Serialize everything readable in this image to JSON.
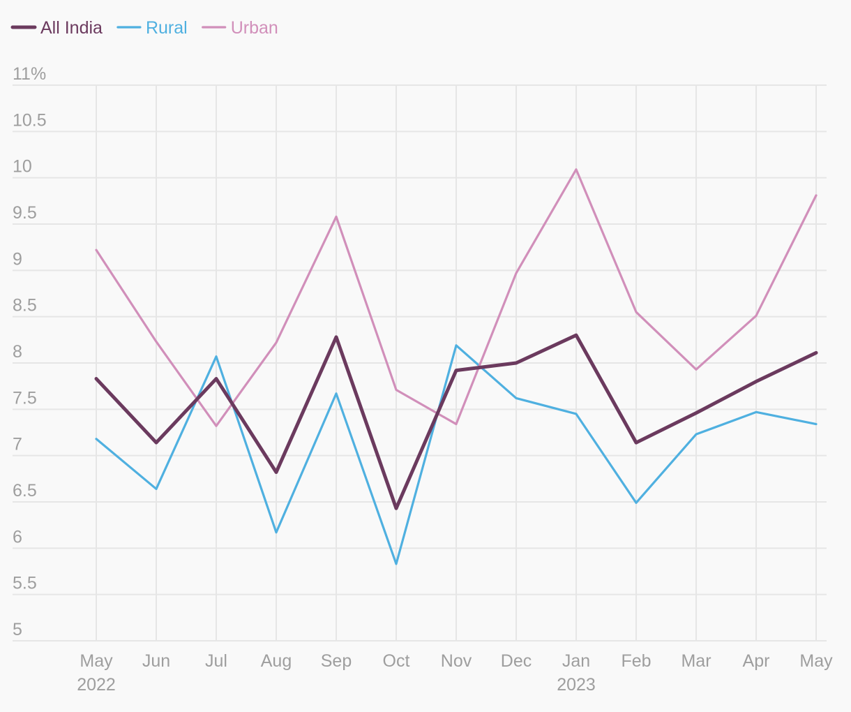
{
  "chart_data": {
    "type": "line",
    "title": "",
    "xlabel": "",
    "ylabel": "",
    "ylim": [
      5,
      11
    ],
    "grid": true,
    "legend_placement": "top-left",
    "y_ticks": [
      {
        "value": 11,
        "label": "11%"
      },
      {
        "value": 10.5,
        "label": "10.5"
      },
      {
        "value": 10,
        "label": "10"
      },
      {
        "value": 9.5,
        "label": "9.5"
      },
      {
        "value": 9,
        "label": "9"
      },
      {
        "value": 8.5,
        "label": "8.5"
      },
      {
        "value": 8,
        "label": "8"
      },
      {
        "value": 7.5,
        "label": "7.5"
      },
      {
        "value": 7,
        "label": "7"
      },
      {
        "value": 6.5,
        "label": "6.5"
      },
      {
        "value": 6,
        "label": "6"
      },
      {
        "value": 5.5,
        "label": "5.5"
      },
      {
        "value": 5,
        "label": "5"
      }
    ],
    "categories": [
      "May",
      "Jun",
      "Jul",
      "Aug",
      "Sep",
      "Oct",
      "Nov",
      "Dec",
      "Jan",
      "Feb",
      "Mar",
      "Apr",
      "May"
    ],
    "x_dates": [
      "2022-05",
      "2022-06",
      "2022-07",
      "2022-08",
      "2022-09",
      "2022-10",
      "2022-11",
      "2022-12",
      "2023-01",
      "2023-02",
      "2023-03",
      "2023-04",
      "2023-05"
    ],
    "year_labels": [
      {
        "index": 0,
        "label": "2022"
      },
      {
        "index": 8,
        "label": "2023"
      }
    ],
    "series": [
      {
        "name": "All India",
        "color": "#6b3a5e",
        "stroke_style": "thick",
        "values": [
          7.83,
          7.14,
          7.83,
          6.82,
          8.28,
          6.43,
          7.92,
          8.0,
          8.3,
          7.14,
          7.46,
          7.8,
          8.11
        ]
      },
      {
        "name": "Rural",
        "color": "#4fb0e0",
        "stroke_style": "thin",
        "values": [
          7.18,
          6.64,
          8.07,
          6.17,
          7.67,
          5.83,
          8.19,
          7.62,
          7.45,
          6.49,
          7.23,
          7.47,
          7.34
        ]
      },
      {
        "name": "Urban",
        "color": "#d18fba",
        "stroke_style": "thin",
        "values": [
          9.22,
          8.23,
          7.32,
          8.22,
          9.58,
          7.71,
          7.34,
          8.97,
          10.09,
          8.55,
          7.93,
          8.51,
          9.81
        ]
      }
    ]
  }
}
